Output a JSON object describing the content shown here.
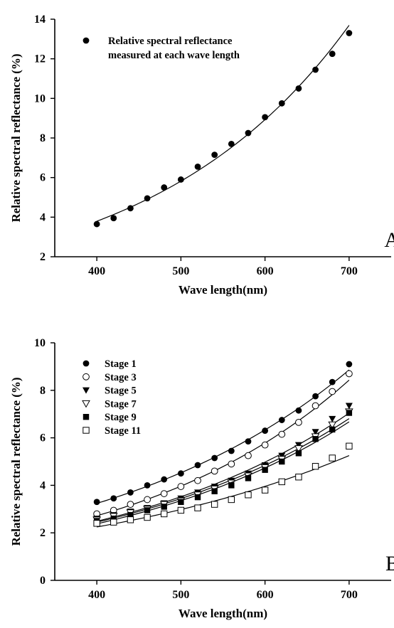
{
  "chart_data": [
    {
      "type": "scatter",
      "panel_label": "A",
      "xlabel": "Wave length(nm)",
      "ylabel": "Relative spectral reflectance (%)",
      "xlim": [
        350,
        750
      ],
      "ylim": [
        2,
        14
      ],
      "xticks": [
        400,
        500,
        600,
        700
      ],
      "yticks": [
        2,
        4,
        6,
        8,
        10,
        12,
        14
      ],
      "legend_position": "top-left",
      "grid": false,
      "series": [
        {
          "name": "Relative spectral reflectance measured at each wave length",
          "legend_lines": [
            "Relative spectral reflectance",
            "measured at each wave length"
          ],
          "marker": "filled-circle",
          "fit_curve": true,
          "x": [
            400,
            420,
            440,
            460,
            480,
            500,
            520,
            540,
            560,
            580,
            600,
            620,
            640,
            660,
            680,
            700
          ],
          "y": [
            3.65,
            3.95,
            4.45,
            4.95,
            5.5,
            5.9,
            6.55,
            7.15,
            7.7,
            8.25,
            9.05,
            9.75,
            10.5,
            11.45,
            12.25,
            13.3
          ]
        }
      ]
    },
    {
      "type": "scatter",
      "panel_label": "B",
      "xlabel": "Wave length(nm)",
      "ylabel": "Relative spectral reflectance (%)",
      "xlim": [
        350,
        750
      ],
      "ylim": [
        0,
        10
      ],
      "xticks": [
        400,
        500,
        600,
        700
      ],
      "yticks": [
        0,
        2,
        4,
        6,
        8,
        10
      ],
      "legend_position": "top-left",
      "grid": false,
      "x": [
        400,
        420,
        440,
        460,
        480,
        500,
        520,
        540,
        560,
        580,
        600,
        620,
        640,
        660,
        680,
        700
      ],
      "series": [
        {
          "name": "Stage 1",
          "marker": "filled-circle",
          "fit_curve": true,
          "y": [
            3.3,
            3.45,
            3.7,
            4.0,
            4.25,
            4.5,
            4.85,
            5.15,
            5.45,
            5.85,
            6.3,
            6.75,
            7.15,
            7.75,
            8.35,
            9.1
          ]
        },
        {
          "name": "Stage 3",
          "marker": "open-circle",
          "fit_curve": true,
          "y": [
            2.8,
            2.95,
            3.2,
            3.4,
            3.65,
            3.95,
            4.2,
            4.6,
            4.9,
            5.25,
            5.7,
            6.15,
            6.65,
            7.35,
            7.95,
            8.7
          ]
        },
        {
          "name": "Stage 5",
          "marker": "filled-triangle-down",
          "fit_curve": true,
          "y": [
            2.6,
            2.75,
            2.9,
            3.05,
            3.25,
            3.45,
            3.7,
            3.95,
            4.2,
            4.5,
            4.85,
            5.25,
            5.7,
            6.25,
            6.8,
            7.35
          ]
        },
        {
          "name": "Stage 7",
          "marker": "open-triangle-down",
          "fit_curve": true,
          "y": [
            2.55,
            2.7,
            2.85,
            3.0,
            3.2,
            3.35,
            3.6,
            3.85,
            4.1,
            4.4,
            4.75,
            5.1,
            5.55,
            6.05,
            6.55,
            7.1
          ]
        },
        {
          "name": "Stage 9",
          "marker": "filled-square",
          "fit_curve": true,
          "y": [
            2.5,
            2.6,
            2.75,
            2.95,
            3.1,
            3.3,
            3.5,
            3.75,
            4.0,
            4.3,
            4.65,
            5.0,
            5.35,
            5.95,
            6.35,
            7.05
          ]
        },
        {
          "name": "Stage 11",
          "marker": "open-square",
          "fit_curve": true,
          "y": [
            2.4,
            2.45,
            2.55,
            2.65,
            2.8,
            2.95,
            3.05,
            3.2,
            3.4,
            3.6,
            3.8,
            4.15,
            4.35,
            4.8,
            5.15,
            5.65
          ]
        }
      ]
    }
  ]
}
